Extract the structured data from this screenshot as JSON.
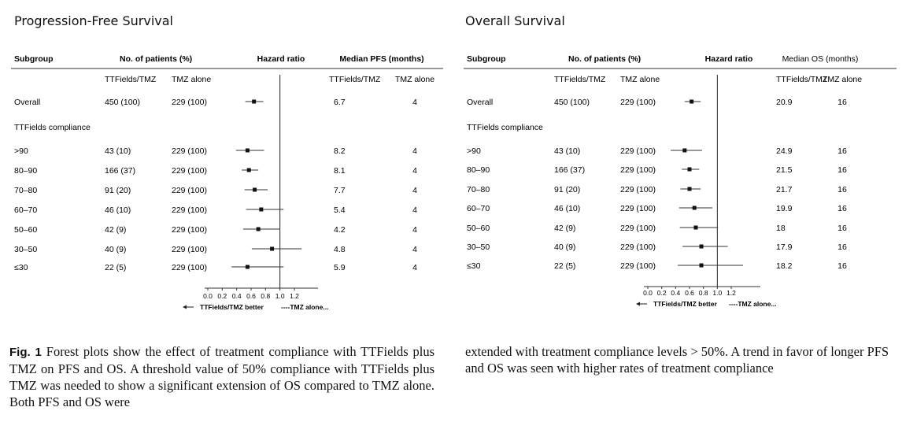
{
  "figure": {
    "caption_label": "Fig. 1",
    "caption_left": "Forest plots show the effect of treatment compliance with TTFields plus TMZ on PFS and OS. A threshold value of 50% compliance with TTFields plus TMZ was needed to show a significant extension of OS compared to TMZ alone. Both PFS and OS were",
    "caption_right": "extended with treatment compliance levels > 50%. A trend in favor of longer PFS and OS was seen with higher rates of treatment compliance"
  },
  "chart_data": [
    {
      "type": "forest",
      "title": "Progression-Free Survival",
      "headers": {
        "subgroup": "Subgroup",
        "patients": "No. of patients (%)",
        "hr": "Hazard ratio",
        "median": "Median PFS (months)",
        "col_a": "TTFields/TMZ",
        "col_b": "TMZ alone",
        "col_c": "TTFields/TMZ",
        "col_d": "TMZ alone",
        "section": "TTFields compliance"
      },
      "axis": {
        "ticks": [
          "0.0",
          "0.2",
          "0.4",
          "0.6",
          "0.8",
          "1.0",
          "1.2"
        ],
        "range": [
          0.0,
          1.3
        ],
        "left_label": "TTFields/TMZ better",
        "right_label": "----TMZ alone..."
      },
      "rows": [
        {
          "label": "Overall",
          "n_a": "450 (100)",
          "n_b": "229 (100)",
          "hr": 0.64,
          "lo": 0.52,
          "hi": 0.77,
          "med_a": "6.7",
          "med_b": "4"
        },
        {
          "label": ">90",
          "n_a": "43 (10)",
          "n_b": "229 (100)",
          "hr": 0.55,
          "lo": 0.39,
          "hi": 0.78,
          "med_a": "8.2",
          "med_b": "4"
        },
        {
          "label": "80–90",
          "n_a": "166 (37)",
          "n_b": "229 (100)",
          "hr": 0.57,
          "lo": 0.47,
          "hi": 0.7,
          "med_a": "8.1",
          "med_b": "4"
        },
        {
          "label": "70–80",
          "n_a": "91 (20)",
          "n_b": "229 (100)",
          "hr": 0.65,
          "lo": 0.51,
          "hi": 0.83,
          "med_a": "7.7",
          "med_b": "4"
        },
        {
          "label": "60–70",
          "n_a": "46 (10)",
          "n_b": "229 (100)",
          "hr": 0.74,
          "lo": 0.53,
          "hi": 1.05,
          "med_a": "5.4",
          "med_b": "4"
        },
        {
          "label": "50–60",
          "n_a": "42 (9)",
          "n_b": "229 (100)",
          "hr": 0.7,
          "lo": 0.49,
          "hi": 1.0,
          "med_a": "4.2",
          "med_b": "4"
        },
        {
          "label": "30–50",
          "n_a": "40 (9)",
          "n_b": "229 (100)",
          "hr": 0.89,
          "lo": 0.61,
          "hi": 1.3,
          "med_a": "4.8",
          "med_b": "4"
        },
        {
          "label": "≤30",
          "n_a": "22 (5)",
          "n_b": "229 (100)",
          "hr": 0.55,
          "lo": 0.33,
          "hi": 1.05,
          "med_a": "5.9",
          "med_b": "4"
        }
      ]
    },
    {
      "type": "forest",
      "title": "Overall Survival",
      "headers": {
        "subgroup": "Subgroup",
        "patients": "No. of patients (%)",
        "hr": "Hazard ratio",
        "median": "Median OS (months)",
        "col_a": "TTFields/TMZ",
        "col_b": "TMZ alone",
        "col_c": "TTFields/TMZ",
        "col_d": "TMZ alone",
        "section": "TTFields compliance"
      },
      "axis": {
        "ticks": [
          "0.0",
          "0.2",
          "0.4",
          "0.6",
          "0.8",
          "1.0",
          "1.2"
        ],
        "range": [
          0.0,
          1.3
        ],
        "left_label": "TTFields/TMZ better",
        "right_label": "----TMZ alone..."
      },
      "rows": [
        {
          "label": "Overall",
          "n_a": "450 (100)",
          "n_b": "229 (100)",
          "hr": 0.63,
          "lo": 0.53,
          "hi": 0.76,
          "med_a": "20.9",
          "med_b": "16"
        },
        {
          "label": ">90",
          "n_a": "43 (10)",
          "n_b": "229 (100)",
          "hr": 0.53,
          "lo": 0.33,
          "hi": 0.78,
          "med_a": "24.9",
          "med_b": "16"
        },
        {
          "label": "80–90",
          "n_a": "166 (37)",
          "n_b": "229 (100)",
          "hr": 0.6,
          "lo": 0.49,
          "hi": 0.74,
          "med_a": "21.5",
          "med_b": "16"
        },
        {
          "label": "70–80",
          "n_a": "91 (20)",
          "n_b": "229 (100)",
          "hr": 0.6,
          "lo": 0.47,
          "hi": 0.76,
          "med_a": "21.7",
          "med_b": "16"
        },
        {
          "label": "60–70",
          "n_a": "46 (10)",
          "n_b": "229 (100)",
          "hr": 0.67,
          "lo": 0.45,
          "hi": 0.93,
          "med_a": "19.9",
          "med_b": "16"
        },
        {
          "label": "50–60",
          "n_a": "42 (9)",
          "n_b": "229 (100)",
          "hr": 0.69,
          "lo": 0.46,
          "hi": 1.01,
          "med_a": "18",
          "med_b": "16"
        },
        {
          "label": "30–50",
          "n_a": "40 (9)",
          "n_b": "229 (100)",
          "hr": 0.77,
          "lo": 0.5,
          "hi": 1.15,
          "med_a": "17.9",
          "med_b": "16"
        },
        {
          "label": "≤30",
          "n_a": "22 (5)",
          "n_b": "229 (100)",
          "hr": 0.77,
          "lo": 0.43,
          "hi": 1.37,
          "med_a": "18.2",
          "med_b": "16"
        }
      ]
    }
  ]
}
